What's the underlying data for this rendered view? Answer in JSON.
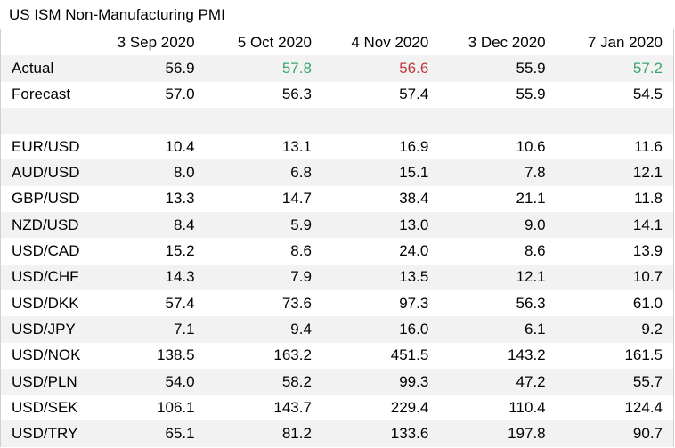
{
  "title": "US ISM Non-Manufacturing PMI",
  "colors": {
    "above_forecast": "#3aa66a",
    "below_forecast": "#c0393b",
    "row_shade": "#f2f2f2"
  },
  "columns": [
    "",
    "3 Sep 2020",
    "5 Oct 2020",
    "4 Nov 2020",
    "3 Dec 2020",
    "7 Jan 2020"
  ],
  "chart_data": {
    "type": "table",
    "title": "US ISM Non-Manufacturing PMI",
    "columns": [
      "",
      "3 Sep 2020",
      "5 Oct 2020",
      "4 Nov 2020",
      "3 Dec 2020",
      "7 Jan 2020"
    ],
    "rows": [
      {
        "label": "Actual",
        "values": [
          "56.9",
          "57.8",
          "56.6",
          "55.9",
          "57.2"
        ],
        "colors": [
          "",
          "pos",
          "neg",
          "",
          "pos"
        ]
      },
      {
        "label": "Forecast",
        "values": [
          "57.0",
          "56.3",
          "57.4",
          "55.9",
          "54.5"
        ]
      },
      {
        "label": "",
        "values": [
          "",
          "",
          "",
          "",
          ""
        ]
      },
      {
        "label": "EUR/USD",
        "values": [
          "10.4",
          "13.1",
          "16.9",
          "10.6",
          "11.6"
        ]
      },
      {
        "label": "AUD/USD",
        "values": [
          "8.0",
          "6.8",
          "15.1",
          "7.8",
          "12.1"
        ]
      },
      {
        "label": "GBP/USD",
        "values": [
          "13.3",
          "14.7",
          "38.4",
          "21.1",
          "11.8"
        ]
      },
      {
        "label": "NZD/USD",
        "values": [
          "8.4",
          "5.9",
          "13.0",
          "9.0",
          "14.1"
        ]
      },
      {
        "label": "USD/CAD",
        "values": [
          "15.2",
          "8.6",
          "24.0",
          "8.6",
          "13.9"
        ]
      },
      {
        "label": "USD/CHF",
        "values": [
          "14.3",
          "7.9",
          "13.5",
          "12.1",
          "10.7"
        ]
      },
      {
        "label": "USD/DKK",
        "values": [
          "57.4",
          "73.6",
          "97.3",
          "56.3",
          "61.0"
        ]
      },
      {
        "label": "USD/JPY",
        "values": [
          "7.1",
          "9.4",
          "16.0",
          "6.1",
          "9.2"
        ]
      },
      {
        "label": "USD/NOK",
        "values": [
          "138.5",
          "163.2",
          "451.5",
          "143.2",
          "161.5"
        ]
      },
      {
        "label": "USD/PLN",
        "values": [
          "54.0",
          "58.2",
          "99.3",
          "47.2",
          "55.7"
        ]
      },
      {
        "label": "USD/SEK",
        "values": [
          "106.1",
          "143.7",
          "229.4",
          "110.4",
          "124.4"
        ]
      },
      {
        "label": "USD/TRY",
        "values": [
          "65.1",
          "81.2",
          "133.6",
          "197.8",
          "90.7"
        ]
      }
    ]
  }
}
